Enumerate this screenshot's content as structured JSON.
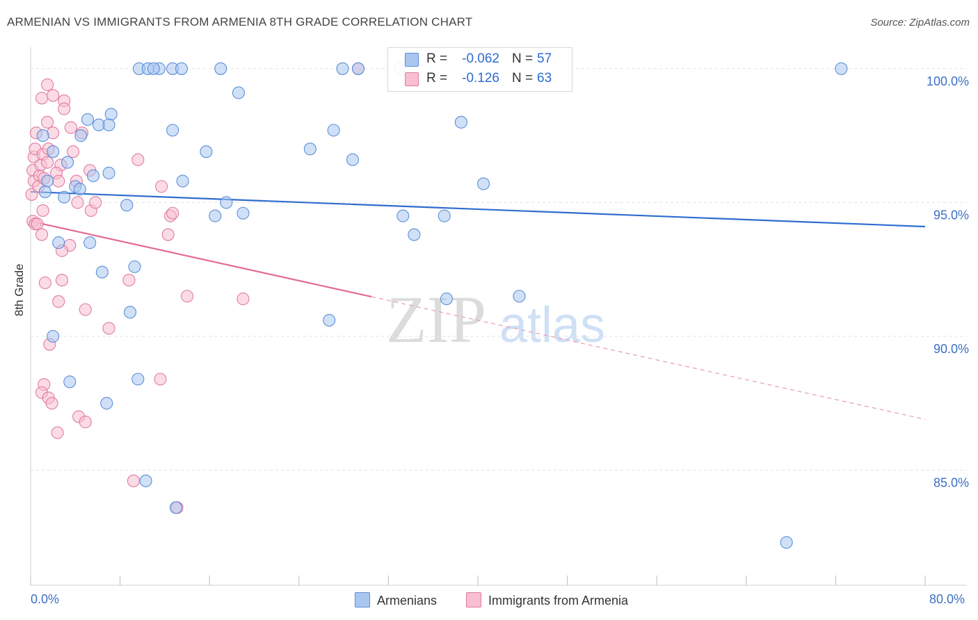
{
  "header": {
    "title": "ARMENIAN VS IMMIGRANTS FROM ARMENIA 8TH GRADE CORRELATION CHART",
    "source": "Source: ZipAtlas.com"
  },
  "stats": [
    {
      "r_label": "R =",
      "r_value": "-0.062",
      "n_label": "N =",
      "n_value": "57",
      "color": "#a9c6f0",
      "border": "#5b8fd8"
    },
    {
      "r_label": "R =",
      "r_value": "-0.126",
      "n_label": "N =",
      "n_value": "63",
      "color": "#f7bfd1",
      "border": "#e07a9e"
    }
  ],
  "legend": [
    {
      "label": "Armenians",
      "color": "#a9c6f0",
      "border": "#5b8fd8"
    },
    {
      "label": "Immigrants from Armenia",
      "color": "#f7bfd1",
      "border": "#e07a9e"
    }
  ],
  "watermark": {
    "zip": "ZIP",
    "atlas": "atlas"
  },
  "chart_data": {
    "type": "scatter",
    "title": "ARMENIAN VS IMMIGRANTS FROM ARMENIA 8TH GRADE CORRELATION CHART",
    "xlabel": "",
    "ylabel": "8th Grade",
    "xlim": [
      0,
      80
    ],
    "ylim": [
      80.7,
      100.8
    ],
    "x_tick_labels": [
      "0.0%",
      "80.0%"
    ],
    "y_ticks": [
      85,
      90,
      95,
      100
    ],
    "y_tick_labels": [
      "85.0%",
      "90.0%",
      "95.0%",
      "100.0%"
    ],
    "grid": "horizontal dashed",
    "legend_position": "bottom",
    "series": [
      {
        "name": "Armenians",
        "color": "#5b8fd8",
        "fill": "#a9c6f0",
        "trend": {
          "x": [
            0,
            80
          ],
          "y": [
            95.4,
            94.1
          ],
          "dashed_from": null
        },
        "points": [
          [
            1.1,
            97.5
          ],
          [
            2.0,
            96.9
          ],
          [
            1.5,
            95.8
          ],
          [
            1.3,
            95.4
          ],
          [
            3.3,
            96.5
          ],
          [
            3.0,
            95.2
          ],
          [
            2.5,
            93.5
          ],
          [
            5.1,
            98.1
          ],
          [
            4.5,
            97.5
          ],
          [
            4.0,
            95.6
          ],
          [
            4.4,
            95.5
          ],
          [
            5.6,
            96.0
          ],
          [
            6.1,
            97.9
          ],
          [
            7.2,
            98.3
          ],
          [
            7.0,
            97.9
          ],
          [
            7.0,
            96.1
          ],
          [
            5.3,
            93.5
          ],
          [
            6.4,
            92.4
          ],
          [
            8.6,
            94.9
          ],
          [
            9.3,
            92.6
          ],
          [
            8.9,
            90.9
          ],
          [
            9.6,
            88.4
          ],
          [
            10.3,
            84.6
          ],
          [
            2.0,
            90.0
          ],
          [
            3.5,
            88.3
          ],
          [
            6.8,
            87.5
          ],
          [
            9.7,
            100.0
          ],
          [
            10.5,
            100.0
          ],
          [
            11.5,
            100.0
          ],
          [
            12.7,
            100.0
          ],
          [
            13.5,
            100.0
          ],
          [
            17.0,
            100.0
          ],
          [
            11.0,
            100.0
          ],
          [
            18.6,
            99.1
          ],
          [
            12.7,
            97.7
          ],
          [
            13.6,
            95.8
          ],
          [
            15.7,
            96.9
          ],
          [
            16.5,
            94.5
          ],
          [
            17.5,
            95.0
          ],
          [
            19.0,
            94.6
          ],
          [
            13.0,
            83.6
          ],
          [
            25.0,
            97.0
          ],
          [
            27.1,
            97.7
          ],
          [
            27.9,
            100.0
          ],
          [
            29.3,
            100.0
          ],
          [
            28.8,
            96.6
          ],
          [
            26.7,
            90.6
          ],
          [
            33.0,
            100.0
          ],
          [
            33.3,
            94.5
          ],
          [
            34.3,
            93.8
          ],
          [
            37.0,
            94.5
          ],
          [
            37.2,
            91.4
          ],
          [
            38.5,
            98.0
          ],
          [
            40.5,
            95.7
          ],
          [
            43.7,
            91.5
          ],
          [
            72.5,
            100.0
          ],
          [
            67.6,
            82.3
          ]
        ]
      },
      {
        "name": "Immigrants from Armenia",
        "color": "#e07a9e",
        "fill": "#f7bfd1",
        "trend": {
          "x": [
            0,
            80
          ],
          "y": [
            94.3,
            86.9
          ],
          "dashed_from": 30.5
        },
        "points": [
          [
            0.3,
            96.7
          ],
          [
            0.5,
            97.6
          ],
          [
            0.4,
            97.0
          ],
          [
            0.2,
            96.2
          ],
          [
            0.3,
            95.8
          ],
          [
            0.1,
            95.3
          ],
          [
            0.2,
            94.3
          ],
          [
            0.4,
            94.2
          ],
          [
            0.6,
            94.2
          ],
          [
            0.8,
            96.0
          ],
          [
            0.7,
            95.6
          ],
          [
            0.9,
            96.4
          ],
          [
            1.1,
            96.8
          ],
          [
            1.6,
            97.0
          ],
          [
            1.5,
            96.5
          ],
          [
            1.2,
            95.9
          ],
          [
            1.0,
            93.8
          ],
          [
            1.1,
            94.7
          ],
          [
            1.5,
            99.4
          ],
          [
            1.0,
            98.9
          ],
          [
            2.0,
            99.0
          ],
          [
            3.0,
            98.8
          ],
          [
            3.0,
            98.5
          ],
          [
            1.5,
            98.0
          ],
          [
            2.0,
            97.6
          ],
          [
            3.6,
            97.8
          ],
          [
            3.8,
            96.9
          ],
          [
            2.7,
            96.4
          ],
          [
            2.3,
            96.1
          ],
          [
            2.5,
            95.8
          ],
          [
            4.1,
            95.8
          ],
          [
            4.2,
            95.0
          ],
          [
            5.3,
            96.2
          ],
          [
            5.4,
            94.7
          ],
          [
            5.8,
            95.0
          ],
          [
            4.6,
            97.6
          ],
          [
            3.5,
            93.4
          ],
          [
            2.8,
            93.2
          ],
          [
            1.3,
            92.0
          ],
          [
            2.8,
            92.1
          ],
          [
            2.5,
            91.3
          ],
          [
            4.9,
            91.0
          ],
          [
            1.7,
            89.7
          ],
          [
            1.2,
            88.2
          ],
          [
            1.0,
            87.9
          ],
          [
            1.6,
            87.7
          ],
          [
            1.9,
            87.5
          ],
          [
            4.3,
            87.0
          ],
          [
            4.9,
            86.8
          ],
          [
            2.4,
            86.4
          ],
          [
            7.0,
            90.3
          ],
          [
            8.8,
            92.1
          ],
          [
            9.6,
            96.6
          ],
          [
            11.7,
            95.6
          ],
          [
            12.3,
            93.8
          ],
          [
            12.5,
            94.5
          ],
          [
            12.7,
            94.6
          ],
          [
            14.0,
            91.5
          ],
          [
            19.0,
            91.4
          ],
          [
            11.6,
            88.4
          ],
          [
            9.2,
            84.6
          ],
          [
            13.1,
            83.6
          ],
          [
            29.3,
            100.0
          ]
        ]
      }
    ]
  }
}
